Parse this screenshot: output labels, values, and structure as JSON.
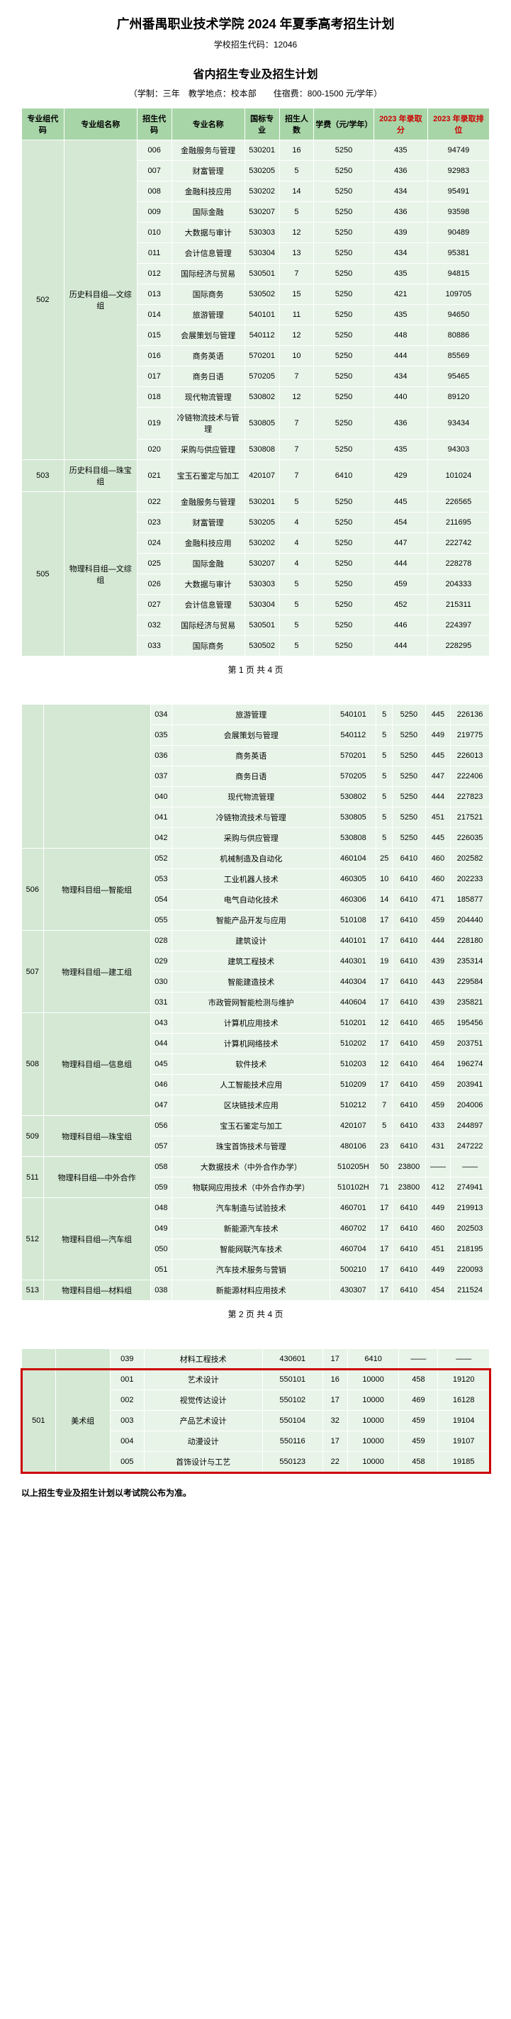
{
  "title": "广州番禺职业技术学院 2024 年夏季高考招生计划",
  "school_code_label": "学校招生代码：",
  "school_code": "12046",
  "section_title": "省内招生专业及招生计划",
  "meta_line": "（学制：三年　教学地点：校本部　　住宿费：800-1500 元/学年）",
  "headers": {
    "c1": "专业组代码",
    "c2": "专业组名称",
    "c3": "招生代码",
    "c4": "专业名称",
    "c5": "国标专业",
    "c6": "招生人数",
    "c7": "学费（元/学年）",
    "c8": "2023 年录取分",
    "c9": "2023 年录取排位"
  },
  "pager1": "第 1 页 共 4 页",
  "pager2": "第 2 页 共 4 页",
  "footnote": "以上招生专业及招生计划以考试院公布为准。",
  "g502": {
    "code": "502",
    "name": "历史科目组—文综组",
    "rows": [
      {
        "c": "006",
        "m": "金融服务与管理",
        "s": "530201",
        "n": "16",
        "f": "5250",
        "p": "435",
        "r": "94749"
      },
      {
        "c": "007",
        "m": "财富管理",
        "s": "530205",
        "n": "5",
        "f": "5250",
        "p": "436",
        "r": "92983"
      },
      {
        "c": "008",
        "m": "金融科技应用",
        "s": "530202",
        "n": "14",
        "f": "5250",
        "p": "434",
        "r": "95491"
      },
      {
        "c": "009",
        "m": "国际金融",
        "s": "530207",
        "n": "5",
        "f": "5250",
        "p": "436",
        "r": "93598"
      },
      {
        "c": "010",
        "m": "大数据与审计",
        "s": "530303",
        "n": "12",
        "f": "5250",
        "p": "439",
        "r": "90489"
      },
      {
        "c": "011",
        "m": "会计信息管理",
        "s": "530304",
        "n": "13",
        "f": "5250",
        "p": "434",
        "r": "95381"
      },
      {
        "c": "012",
        "m": "国际经济与贸易",
        "s": "530501",
        "n": "7",
        "f": "5250",
        "p": "435",
        "r": "94815"
      },
      {
        "c": "013",
        "m": "国际商务",
        "s": "530502",
        "n": "15",
        "f": "5250",
        "p": "421",
        "r": "109705"
      },
      {
        "c": "014",
        "m": "旅游管理",
        "s": "540101",
        "n": "11",
        "f": "5250",
        "p": "435",
        "r": "94650"
      },
      {
        "c": "015",
        "m": "会展策划与管理",
        "s": "540112",
        "n": "12",
        "f": "5250",
        "p": "448",
        "r": "80886"
      },
      {
        "c": "016",
        "m": "商务英语",
        "s": "570201",
        "n": "10",
        "f": "5250",
        "p": "444",
        "r": "85569"
      },
      {
        "c": "017",
        "m": "商务日语",
        "s": "570205",
        "n": "7",
        "f": "5250",
        "p": "434",
        "r": "95465"
      },
      {
        "c": "018",
        "m": "现代物流管理",
        "s": "530802",
        "n": "12",
        "f": "5250",
        "p": "440",
        "r": "89120"
      },
      {
        "c": "019",
        "m": "冷链物流技术与管理",
        "s": "530805",
        "n": "7",
        "f": "5250",
        "p": "436",
        "r": "93434"
      },
      {
        "c": "020",
        "m": "采购与供应管理",
        "s": "530808",
        "n": "7",
        "f": "5250",
        "p": "435",
        "r": "94303"
      }
    ]
  },
  "g503": {
    "code": "503",
    "name": "历史科目组—珠宝组",
    "rows": [
      {
        "c": "021",
        "m": "宝玉石鉴定与加工",
        "s": "420107",
        "n": "7",
        "f": "6410",
        "p": "429",
        "r": "101024"
      }
    ]
  },
  "g505": {
    "code": "505",
    "name": "物理科目组—文综组",
    "rows": [
      {
        "c": "022",
        "m": "金融服务与管理",
        "s": "530201",
        "n": "5",
        "f": "5250",
        "p": "445",
        "r": "226565"
      },
      {
        "c": "023",
        "m": "财富管理",
        "s": "530205",
        "n": "4",
        "f": "5250",
        "p": "454",
        "r": "211695"
      },
      {
        "c": "024",
        "m": "金融科技应用",
        "s": "530202",
        "n": "4",
        "f": "5250",
        "p": "447",
        "r": "222742"
      },
      {
        "c": "025",
        "m": "国际金融",
        "s": "530207",
        "n": "4",
        "f": "5250",
        "p": "444",
        "r": "228278"
      },
      {
        "c": "026",
        "m": "大数据与审计",
        "s": "530303",
        "n": "5",
        "f": "5250",
        "p": "459",
        "r": "204333"
      },
      {
        "c": "027",
        "m": "会计信息管理",
        "s": "530304",
        "n": "5",
        "f": "5250",
        "p": "452",
        "r": "215311"
      },
      {
        "c": "032",
        "m": "国际经济与贸易",
        "s": "530501",
        "n": "5",
        "f": "5250",
        "p": "446",
        "r": "224397"
      },
      {
        "c": "033",
        "m": "国际商务",
        "s": "530502",
        "n": "5",
        "f": "5250",
        "p": "444",
        "r": "228295"
      }
    ]
  },
  "g505b": {
    "rows": [
      {
        "c": "034",
        "m": "旅游管理",
        "s": "540101",
        "n": "5",
        "f": "5250",
        "p": "445",
        "r": "226136"
      },
      {
        "c": "035",
        "m": "会展策划与管理",
        "s": "540112",
        "n": "5",
        "f": "5250",
        "p": "449",
        "r": "219775"
      },
      {
        "c": "036",
        "m": "商务英语",
        "s": "570201",
        "n": "5",
        "f": "5250",
        "p": "445",
        "r": "226013"
      },
      {
        "c": "037",
        "m": "商务日语",
        "s": "570205",
        "n": "5",
        "f": "5250",
        "p": "447",
        "r": "222406"
      },
      {
        "c": "040",
        "m": "现代物流管理",
        "s": "530802",
        "n": "5",
        "f": "5250",
        "p": "444",
        "r": "227823"
      },
      {
        "c": "041",
        "m": "冷链物流技术与管理",
        "s": "530805",
        "n": "5",
        "f": "5250",
        "p": "451",
        "r": "217521"
      },
      {
        "c": "042",
        "m": "采购与供应管理",
        "s": "530808",
        "n": "5",
        "f": "5250",
        "p": "445",
        "r": "226035"
      }
    ]
  },
  "g506": {
    "code": "506",
    "name": "物理科目组—智能组",
    "rows": [
      {
        "c": "052",
        "m": "机械制造及自动化",
        "s": "460104",
        "n": "25",
        "f": "6410",
        "p": "460",
        "r": "202582"
      },
      {
        "c": "053",
        "m": "工业机器人技术",
        "s": "460305",
        "n": "10",
        "f": "6410",
        "p": "460",
        "r": "202233"
      },
      {
        "c": "054",
        "m": "电气自动化技术",
        "s": "460306",
        "n": "14",
        "f": "6410",
        "p": "471",
        "r": "185877"
      },
      {
        "c": "055",
        "m": "智能产品开发与应用",
        "s": "510108",
        "n": "17",
        "f": "6410",
        "p": "459",
        "r": "204440"
      }
    ]
  },
  "g507": {
    "code": "507",
    "name": "物理科目组—建工组",
    "rows": [
      {
        "c": "028",
        "m": "建筑设计",
        "s": "440101",
        "n": "17",
        "f": "6410",
        "p": "444",
        "r": "228180"
      },
      {
        "c": "029",
        "m": "建筑工程技术",
        "s": "440301",
        "n": "19",
        "f": "6410",
        "p": "439",
        "r": "235314"
      },
      {
        "c": "030",
        "m": "智能建造技术",
        "s": "440304",
        "n": "17",
        "f": "6410",
        "p": "443",
        "r": "229584"
      },
      {
        "c": "031",
        "m": "市政管网智能检测与维护",
        "s": "440604",
        "n": "17",
        "f": "6410",
        "p": "439",
        "r": "235821"
      }
    ]
  },
  "g508": {
    "code": "508",
    "name": "物理科目组—信息组",
    "rows": [
      {
        "c": "043",
        "m": "计算机应用技术",
        "s": "510201",
        "n": "12",
        "f": "6410",
        "p": "465",
        "r": "195456"
      },
      {
        "c": "044",
        "m": "计算机网络技术",
        "s": "510202",
        "n": "17",
        "f": "6410",
        "p": "459",
        "r": "203751"
      },
      {
        "c": "045",
        "m": "软件技术",
        "s": "510203",
        "n": "12",
        "f": "6410",
        "p": "464",
        "r": "196274"
      },
      {
        "c": "046",
        "m": "人工智能技术应用",
        "s": "510209",
        "n": "17",
        "f": "6410",
        "p": "459",
        "r": "203941"
      },
      {
        "c": "047",
        "m": "区块链技术应用",
        "s": "510212",
        "n": "7",
        "f": "6410",
        "p": "459",
        "r": "204006"
      }
    ]
  },
  "g509": {
    "code": "509",
    "name": "物理科目组—珠宝组",
    "rows": [
      {
        "c": "056",
        "m": "宝玉石鉴定与加工",
        "s": "420107",
        "n": "5",
        "f": "6410",
        "p": "433",
        "r": "244897"
      },
      {
        "c": "057",
        "m": "珠宝首饰技术与管理",
        "s": "480106",
        "n": "23",
        "f": "6410",
        "p": "431",
        "r": "247222"
      }
    ]
  },
  "g511": {
    "code": "511",
    "name": "物理科目组—中外合作",
    "rows": [
      {
        "c": "058",
        "m": "大数据技术（中外合作办学）",
        "s": "510205H",
        "n": "50",
        "f": "23800",
        "p": "——",
        "r": "——"
      },
      {
        "c": "059",
        "m": "物联网应用技术（中外合作办学）",
        "s": "510102H",
        "n": "71",
        "f": "23800",
        "p": "412",
        "r": "274941"
      }
    ]
  },
  "g512": {
    "code": "512",
    "name": "物理科目组—汽车组",
    "rows": [
      {
        "c": "048",
        "m": "汽车制造与试验技术",
        "s": "460701",
        "n": "17",
        "f": "6410",
        "p": "449",
        "r": "219913"
      },
      {
        "c": "049",
        "m": "新能源汽车技术",
        "s": "460702",
        "n": "17",
        "f": "6410",
        "p": "460",
        "r": "202503"
      },
      {
        "c": "050",
        "m": "智能网联汽车技术",
        "s": "460704",
        "n": "17",
        "f": "6410",
        "p": "451",
        "r": "218195"
      },
      {
        "c": "051",
        "m": "汽车技术服务与营销",
        "s": "500210",
        "n": "17",
        "f": "6410",
        "p": "449",
        "r": "220093"
      }
    ]
  },
  "g513": {
    "code": "513",
    "name": "物理科目组—材料组",
    "rows": [
      {
        "c": "038",
        "m": "新能源材料应用技术",
        "s": "430307",
        "n": "17",
        "f": "6410",
        "p": "454",
        "r": "211524"
      }
    ]
  },
  "g513b": {
    "rows": [
      {
        "c": "039",
        "m": "材料工程技术",
        "s": "430601",
        "n": "17",
        "f": "6410",
        "p": "——",
        "r": "——"
      }
    ]
  },
  "g501": {
    "code": "501",
    "name": "美术组",
    "rows": [
      {
        "c": "001",
        "m": "艺术设计",
        "s": "550101",
        "n": "16",
        "f": "10000",
        "p": "458",
        "r": "19120"
      },
      {
        "c": "002",
        "m": "视觉传达设计",
        "s": "550102",
        "n": "17",
        "f": "10000",
        "p": "469",
        "r": "16128"
      },
      {
        "c": "003",
        "m": "产品艺术设计",
        "s": "550104",
        "n": "32",
        "f": "10000",
        "p": "459",
        "r": "19104"
      },
      {
        "c": "004",
        "m": "动漫设计",
        "s": "550116",
        "n": "17",
        "f": "10000",
        "p": "459",
        "r": "19107"
      },
      {
        "c": "005",
        "m": "首饰设计与工艺",
        "s": "550123",
        "n": "22",
        "f": "10000",
        "p": "458",
        "r": "19185"
      }
    ]
  }
}
